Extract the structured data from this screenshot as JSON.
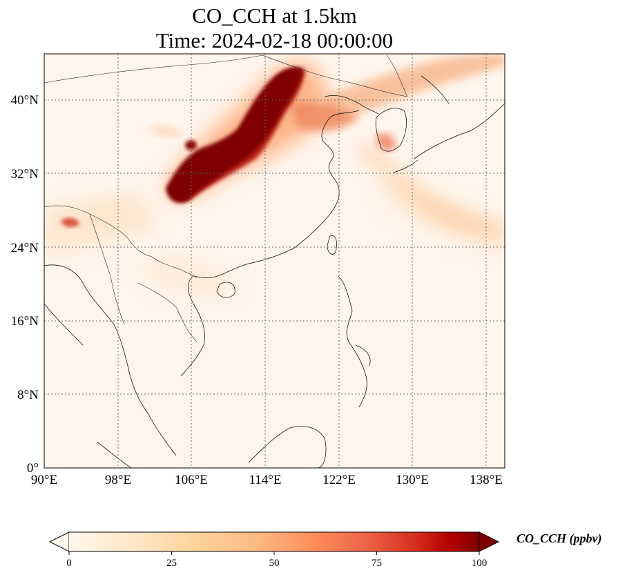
{
  "title": {
    "line1": "CO_CCH at 1.5km",
    "line2": "Time: 2024-02-18 00:00:00"
  },
  "map": {
    "lon_range": [
      90,
      140
    ],
    "lat_range": [
      0,
      45
    ],
    "gridlines": "dotted",
    "x_ticks": [
      "90°E",
      "98°E",
      "106°E",
      "114°E",
      "122°E",
      "130°E",
      "138°E"
    ],
    "y_ticks": [
      "0°",
      "8°N",
      "16°N",
      "24°N",
      "32°N",
      "40°N"
    ]
  },
  "colorbar": {
    "label": "CO_CCH (ppbv)",
    "ticks": [
      "0",
      "25",
      "50",
      "75",
      "100"
    ],
    "range": [
      0,
      100
    ],
    "colormap": "OrRd",
    "extend": "both"
  },
  "colors": {
    "background_field": "#fff5eb",
    "low": "#fdd49e",
    "mid": "#ef6548",
    "high": "#7f0000"
  }
}
